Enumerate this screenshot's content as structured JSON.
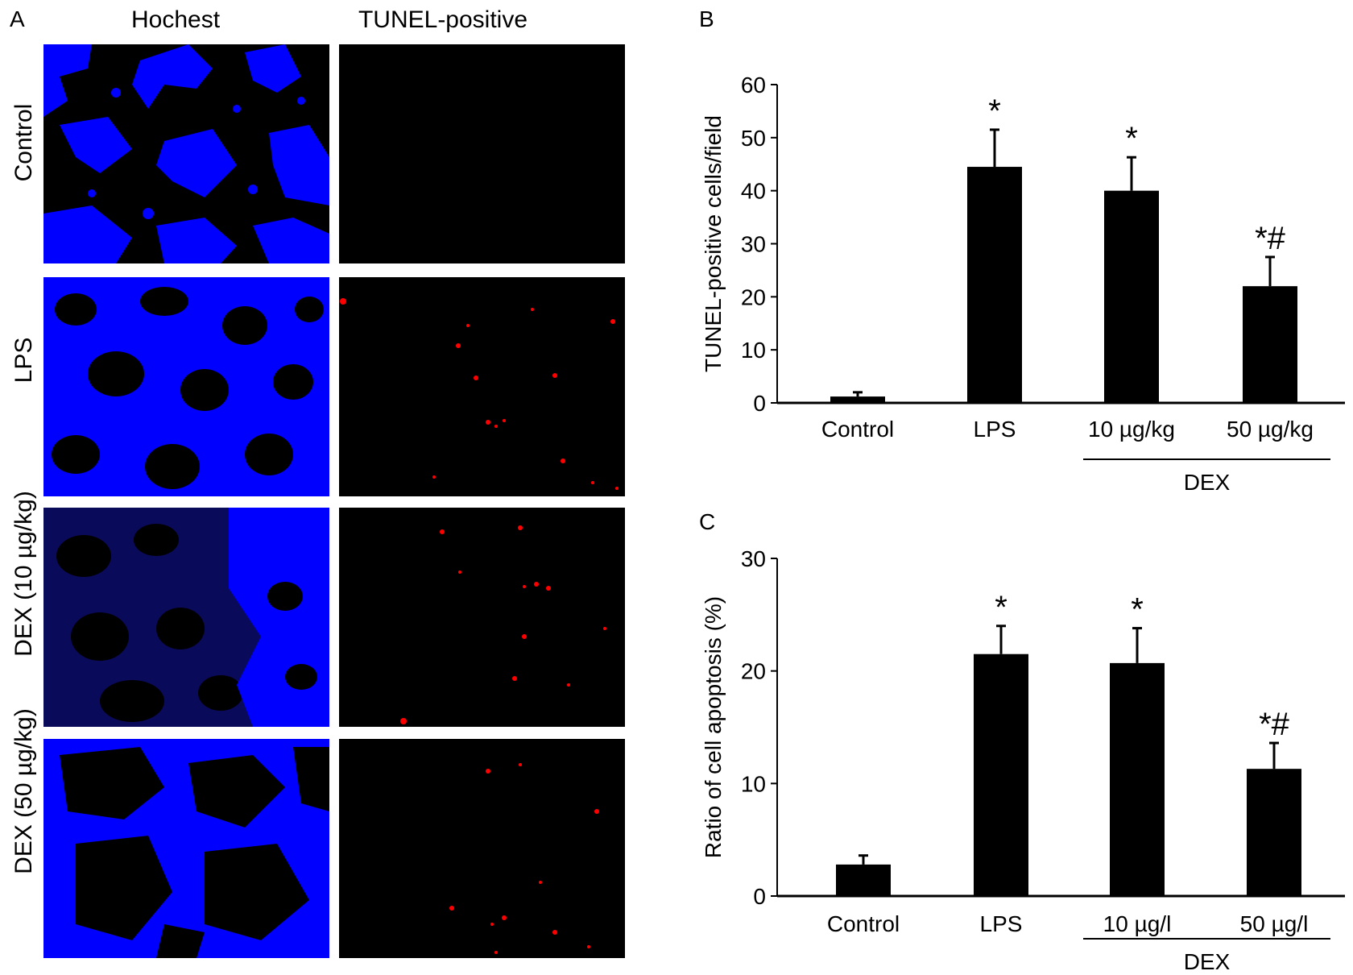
{
  "panel_a": {
    "letter": "A",
    "col_headers": [
      "Hochest",
      "TUNEL-positive"
    ],
    "row_labels": [
      "Control",
      "LPS",
      "DEX (10 µg/kg)",
      "DEX (50 µg/kg)"
    ],
    "colors": {
      "hoechst": "#0000ff",
      "tunel": "#ff0000",
      "background": "#000000"
    }
  },
  "panel_b_letter": "B",
  "panel_c_letter": "C",
  "chart_data": [
    {
      "type": "bar",
      "ylabel": "TUNEL-positive cells/field",
      "ylim": [
        0,
        60
      ],
      "yticks": [
        0,
        10,
        20,
        30,
        40,
        50,
        60
      ],
      "categories": [
        "Control",
        "LPS",
        "10 µg/kg",
        "50 µg/kg"
      ],
      "values": [
        1.2,
        44.5,
        40,
        22
      ],
      "errors": [
        0.8,
        7,
        6.3,
        5.5
      ],
      "annotations": [
        "",
        "*",
        "*",
        "*#"
      ],
      "group_label": "DEX",
      "bar_color": "#000000"
    },
    {
      "type": "bar",
      "ylabel": "Ratio of cell apoptosis (%)",
      "ylim": [
        0,
        30
      ],
      "yticks": [
        0,
        10,
        20,
        30
      ],
      "categories": [
        "Control",
        "LPS",
        "10 µg/l",
        "50 µg/l"
      ],
      "values": [
        2.8,
        21.5,
        20.7,
        11.3
      ],
      "errors": [
        0.8,
        2.5,
        3.1,
        2.3
      ],
      "annotations": [
        "",
        "*",
        "*",
        "*#"
      ],
      "group_label": "DEX",
      "bar_color": "#000000"
    }
  ]
}
